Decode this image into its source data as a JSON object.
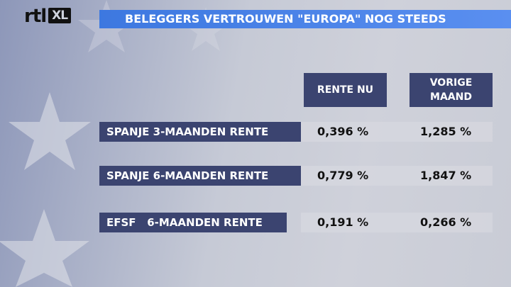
{
  "logo": {
    "text": "rtl",
    "badge": "XL"
  },
  "title": "BELEGGERS VERTROUWEN \"EUROPA\" NOG STEEDS",
  "table": {
    "columns": [
      "RENTE NU",
      "VORIGE MAAND"
    ],
    "rows": [
      {
        "label": "SPANJE 3-MAANDEN RENTE",
        "values": [
          "0,396 %",
          "1,285 %"
        ]
      },
      {
        "label": "SPANJE 6-MAANDEN RENTE",
        "values": [
          "0,779 %",
          "1,847 %"
        ]
      },
      {
        "label": "EFSF   6-MAANDEN RENTE",
        "values": [
          "0,191 %",
          "0,266 %"
        ]
      }
    ]
  }
}
